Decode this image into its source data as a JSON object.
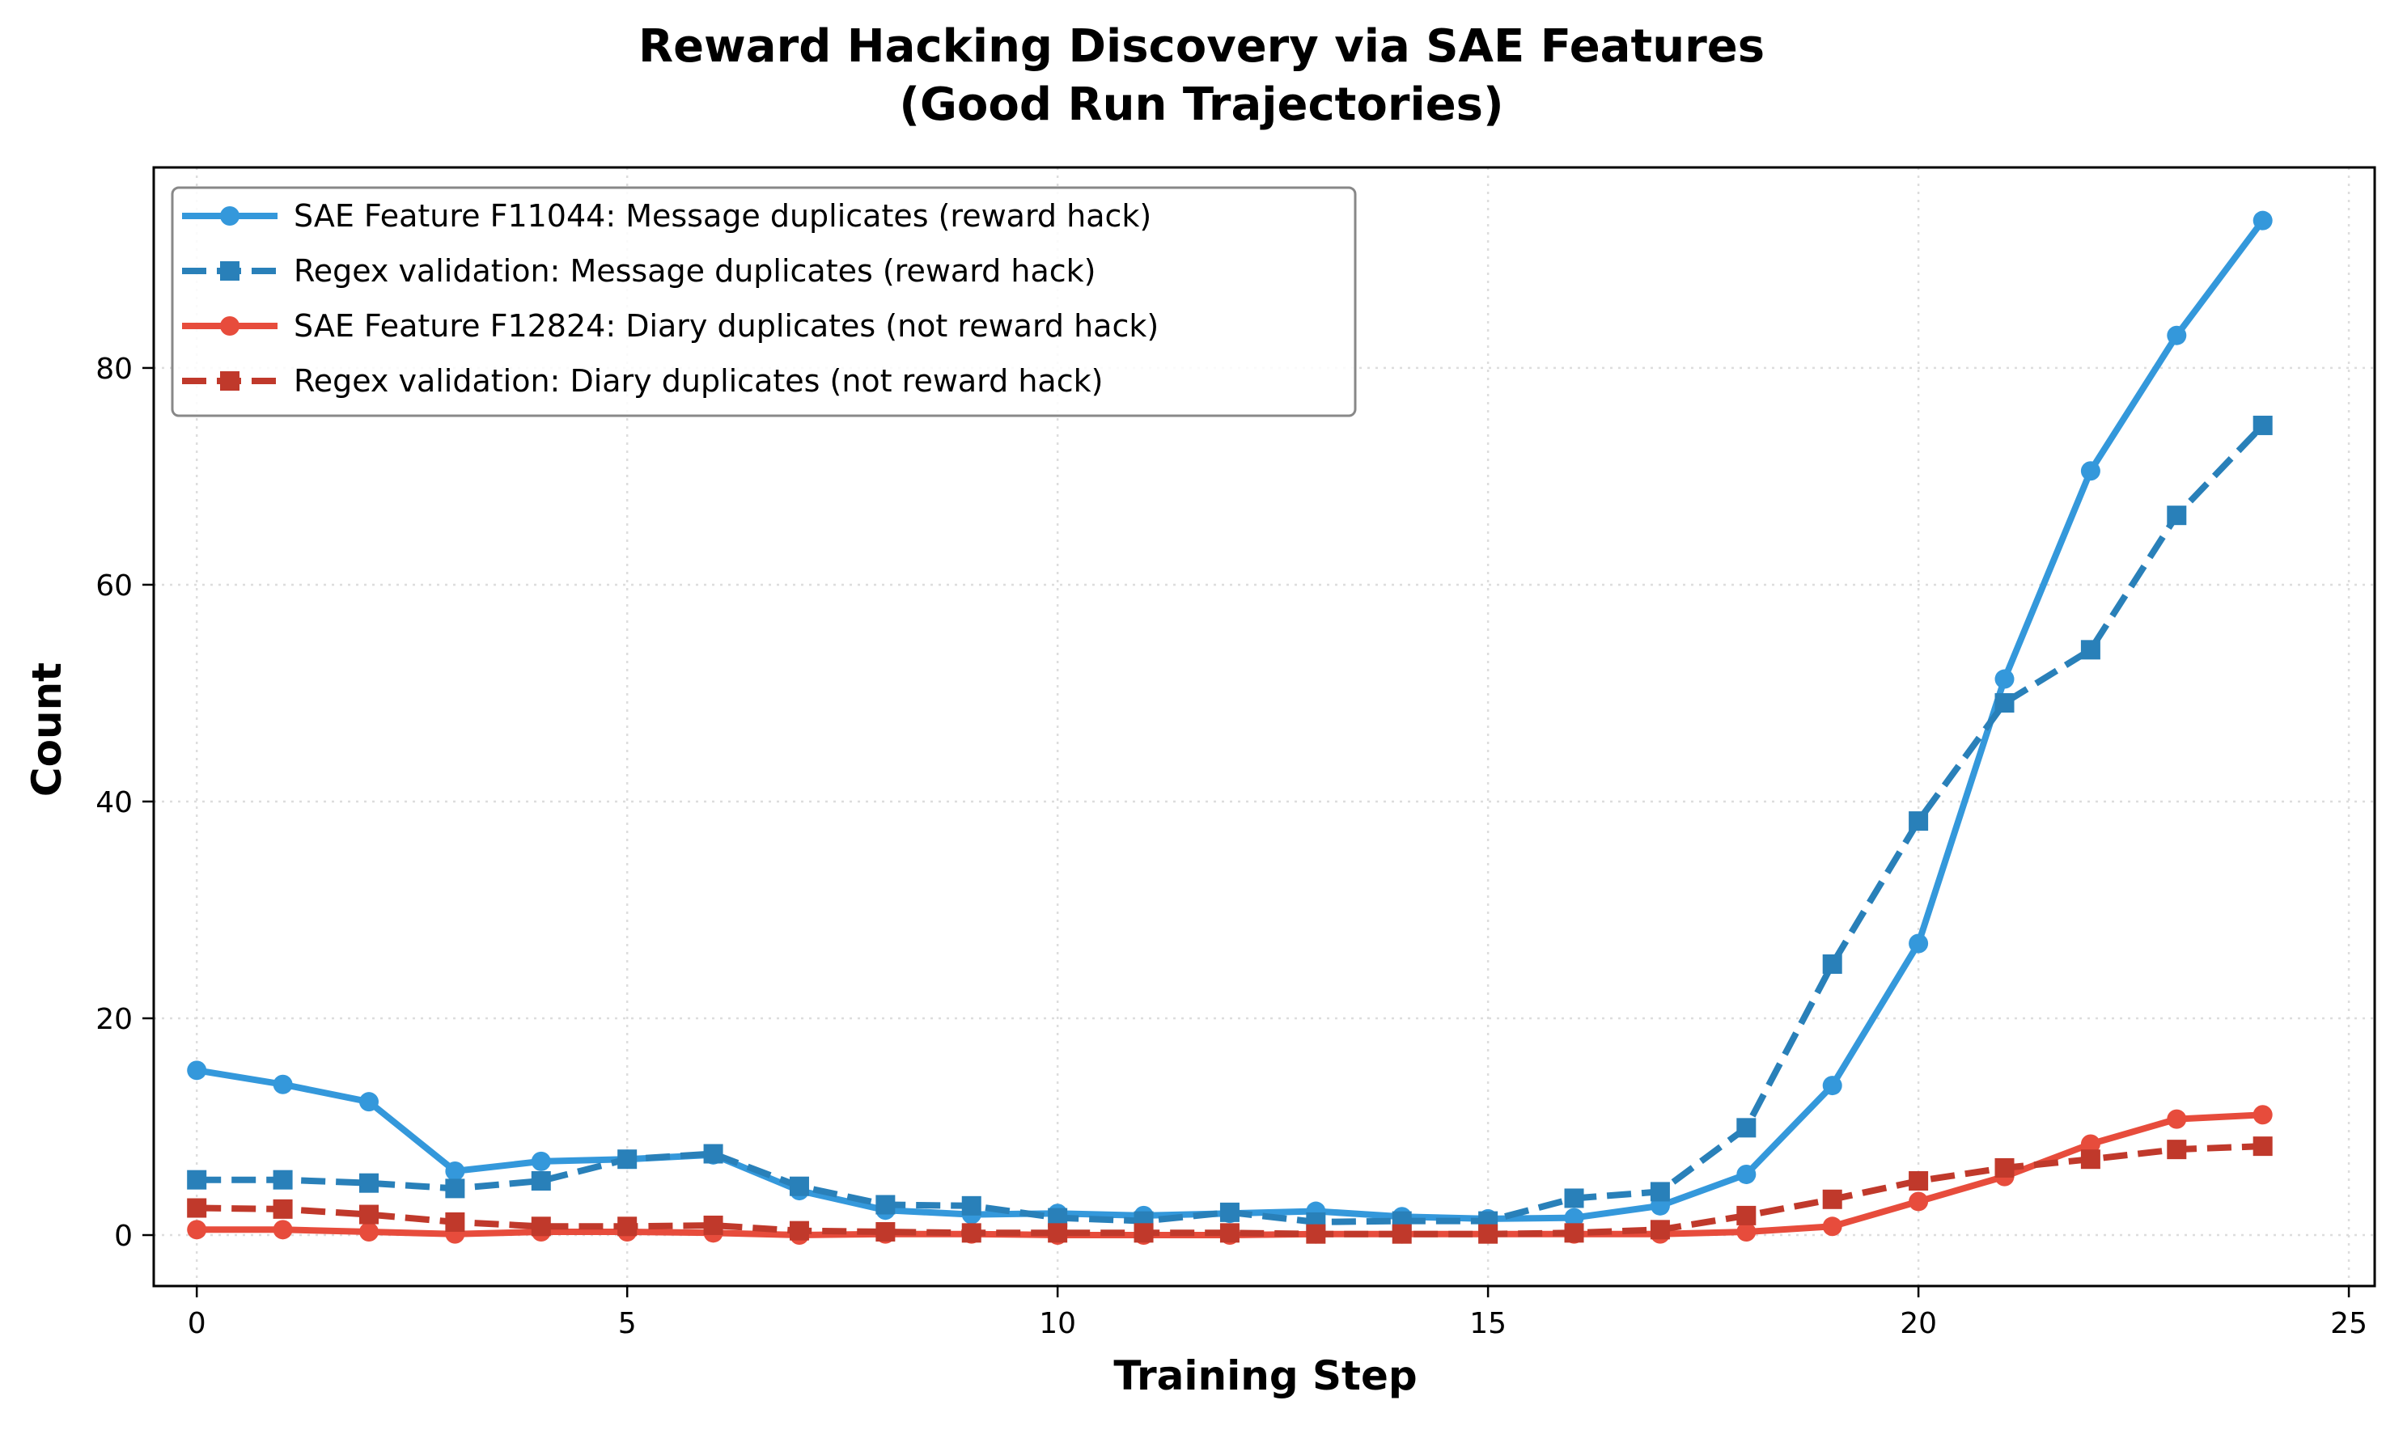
{
  "chart_data": {
    "type": "line",
    "title": "Reward Hacking Discovery via SAE Features\n(Good Run Trajectories)",
    "title_lines": [
      "Reward Hacking Discovery via SAE Features",
      "(Good Run Trajectories)"
    ],
    "xlabel": "Training Step",
    "ylabel": "Count",
    "xlim": [
      -0.5,
      25.3
    ],
    "ylim": [
      -4.7,
      98.5
    ],
    "xticks": [
      0,
      5,
      10,
      15,
      20,
      25
    ],
    "yticks": [
      0,
      20,
      40,
      60,
      80
    ],
    "grid": true,
    "legend_position": "upper left",
    "x": [
      0,
      1,
      2,
      3,
      4,
      5,
      6,
      7,
      8,
      9,
      10,
      11,
      12,
      13,
      14,
      15,
      16,
      17,
      18,
      19,
      20,
      21,
      22,
      23,
      24
    ],
    "series": [
      {
        "name": "SAE Feature F11044: Message duplicates (reward hack)",
        "color": "#3498db",
        "linestyle": "solid",
        "marker": "circle",
        "values": [
          15.2,
          13.9,
          12.3,
          5.9,
          6.8,
          7.0,
          7.4,
          4.1,
          2.3,
          1.9,
          2.0,
          1.8,
          2.0,
          2.2,
          1.7,
          1.5,
          1.6,
          2.7,
          5.6,
          13.8,
          26.9,
          51.3,
          70.5,
          83.0,
          93.6
        ]
      },
      {
        "name": "Regex validation: Message duplicates (reward hack)",
        "color": "#2980b9",
        "linestyle": "dashed",
        "marker": "square",
        "values": [
          5.1,
          5.1,
          4.8,
          4.3,
          5.0,
          7.0,
          7.5,
          4.5,
          2.8,
          2.7,
          1.6,
          1.3,
          2.1,
          1.2,
          1.3,
          1.3,
          3.4,
          4.0,
          9.9,
          25.0,
          38.2,
          49.1,
          54.0,
          66.4,
          74.7
        ]
      },
      {
        "name": "SAE Feature F12824: Diary duplicates (not reward hack)",
        "color": "#e74c3c",
        "linestyle": "solid",
        "marker": "circle",
        "values": [
          0.5,
          0.5,
          0.3,
          0.1,
          0.3,
          0.3,
          0.2,
          0.0,
          0.1,
          0.1,
          0.0,
          0.0,
          0.0,
          0.1,
          0.1,
          0.1,
          0.1,
          0.1,
          0.3,
          0.8,
          3.1,
          5.4,
          8.4,
          10.7,
          11.1
        ]
      },
      {
        "name": "Regex validation: Diary duplicates (not reward hack)",
        "color": "#c0392b",
        "linestyle": "dashed",
        "marker": "square",
        "values": [
          2.5,
          2.4,
          1.9,
          1.2,
          0.8,
          0.8,
          0.9,
          0.4,
          0.3,
          0.2,
          0.2,
          0.2,
          0.2,
          0.1,
          0.1,
          0.1,
          0.2,
          0.5,
          1.8,
          3.3,
          5.0,
          6.2,
          7.0,
          7.9,
          8.2
        ]
      }
    ]
  },
  "labels": {
    "title_line1": "Reward Hacking Discovery via SAE Features",
    "title_line2": "(Good Run Trajectories)",
    "xlabel": "Training Step",
    "ylabel": "Count"
  },
  "style": {
    "grid_color": "#dddddd",
    "axis_color": "#000000",
    "legend_border_color": "#888888"
  }
}
